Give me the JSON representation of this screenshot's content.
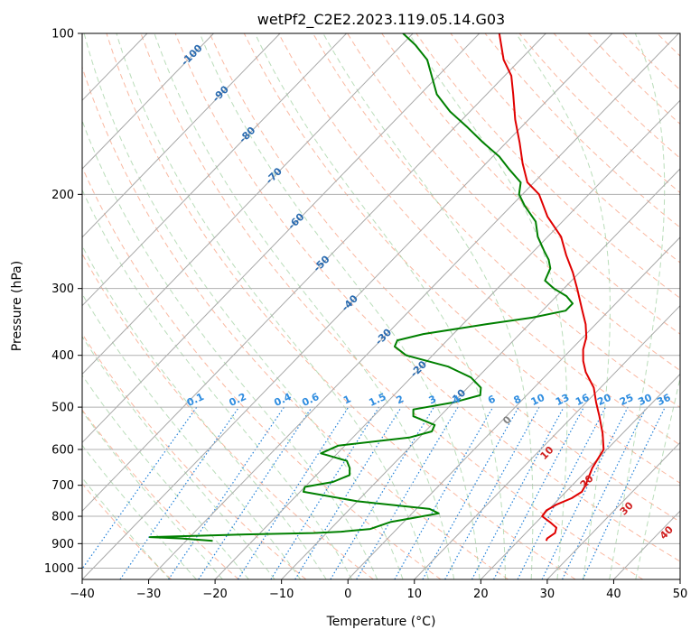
{
  "chart_data": {
    "type": "line",
    "title": "wetPf2_C2E2.2023.119.05.14.G03",
    "xlabel": "Temperature (°C)",
    "ylabel": "Pressure (hPa)",
    "xlim": [
      -40,
      50
    ],
    "ylim": [
      1050,
      100
    ],
    "y_scale": "log",
    "skew": true,
    "grid": true,
    "x_ticks": [
      -40,
      -30,
      -20,
      -10,
      0,
      10,
      20,
      30,
      40,
      50
    ],
    "y_ticks": [
      100,
      200,
      300,
      400,
      500,
      600,
      700,
      800,
      900,
      1000
    ],
    "series": [
      {
        "color": "#e00000",
        "points": [
          [
            889,
            24.2
          ],
          [
            880,
            24.0
          ],
          [
            860,
            24.4
          ],
          [
            840,
            23.8
          ],
          [
            820,
            22.0
          ],
          [
            800,
            20.0
          ],
          [
            780,
            19.8
          ],
          [
            760,
            20.5
          ],
          [
            740,
            21.8
          ],
          [
            720,
            22.4
          ],
          [
            700,
            22.0
          ],
          [
            650,
            20.5
          ],
          [
            600,
            19.5
          ],
          [
            560,
            17.0
          ],
          [
            520,
            14.0
          ],
          [
            490,
            11.5
          ],
          [
            460,
            9.0
          ],
          [
            430,
            5.5
          ],
          [
            410,
            3.5
          ],
          [
            390,
            1.8
          ],
          [
            370,
            0.5
          ],
          [
            350,
            -1.5
          ],
          [
            330,
            -4.0
          ],
          [
            300,
            -8.0
          ],
          [
            280,
            -11.0
          ],
          [
            260,
            -14.5
          ],
          [
            240,
            -18.0
          ],
          [
            220,
            -23.0
          ],
          [
            200,
            -27.5
          ],
          [
            190,
            -31.0
          ],
          [
            175,
            -34.5
          ],
          [
            160,
            -38.0
          ],
          [
            145,
            -42.0
          ],
          [
            130,
            -46.0
          ],
          [
            120,
            -49.0
          ],
          [
            112,
            -52.5
          ],
          [
            100,
            -57.0
          ]
        ]
      },
      {
        "color": "#008000",
        "points": [
          [
            889,
            -26.0
          ],
          [
            880,
            -31.0
          ],
          [
            875,
            -36.0
          ],
          [
            872,
            -32.0
          ],
          [
            865,
            -22.0
          ],
          [
            860,
            -12.0
          ],
          [
            855,
            -8.0
          ],
          [
            845,
            -4.0
          ],
          [
            820,
            -2.0
          ],
          [
            805,
            1.0
          ],
          [
            790,
            4.0
          ],
          [
            775,
            2.0
          ],
          [
            750,
            -10.0
          ],
          [
            720,
            -19.5
          ],
          [
            705,
            -20.0
          ],
          [
            690,
            -16.5
          ],
          [
            670,
            -15.0
          ],
          [
            650,
            -16.0
          ],
          [
            630,
            -17.5
          ],
          [
            610,
            -22.5
          ],
          [
            590,
            -21.0
          ],
          [
            570,
            -11.5
          ],
          [
            555,
            -9.0
          ],
          [
            540,
            -9.5
          ],
          [
            520,
            -14.0
          ],
          [
            505,
            -15.0
          ],
          [
            490,
            -10.0
          ],
          [
            475,
            -7.0
          ],
          [
            460,
            -8.0
          ],
          [
            440,
            -11.0
          ],
          [
            420,
            -16.0
          ],
          [
            400,
            -24.0
          ],
          [
            385,
            -27.0
          ],
          [
            375,
            -27.5
          ],
          [
            365,
            -24.5
          ],
          [
            350,
            -16.5
          ],
          [
            340,
            -10.5
          ],
          [
            330,
            -6.5
          ],
          [
            320,
            -6.5
          ],
          [
            310,
            -8.5
          ],
          [
            300,
            -11.5
          ],
          [
            290,
            -14.0
          ],
          [
            275,
            -15.0
          ],
          [
            265,
            -16.5
          ],
          [
            255,
            -18.5
          ],
          [
            240,
            -21.5
          ],
          [
            225,
            -24.0
          ],
          [
            210,
            -28.0
          ],
          [
            200,
            -30.5
          ],
          [
            190,
            -32.0
          ],
          [
            180,
            -35.5
          ],
          [
            170,
            -39.0
          ],
          [
            160,
            -43.5
          ],
          [
            150,
            -48.0
          ],
          [
            140,
            -53.0
          ],
          [
            130,
            -57.5
          ],
          [
            120,
            -61.0
          ],
          [
            112,
            -64.0
          ],
          [
            105,
            -68.0
          ],
          [
            100,
            -71.5
          ]
        ]
      }
    ],
    "isotherm_labels": [
      "-100",
      "-90",
      "-80",
      "-70",
      "-60",
      "-50",
      "-40",
      "-30",
      "-20",
      "-10"
    ],
    "mixing_ratio_labels": [
      "0.1",
      "0.2",
      "0.4",
      "0.6",
      "1",
      "1.5",
      "2",
      "3",
      "4",
      "6",
      "8",
      "10",
      "13",
      "16",
      "20",
      "25",
      "30",
      "36"
    ],
    "dry_adiabat_labels": [
      "0",
      "10",
      "20",
      "30",
      "40"
    ]
  }
}
